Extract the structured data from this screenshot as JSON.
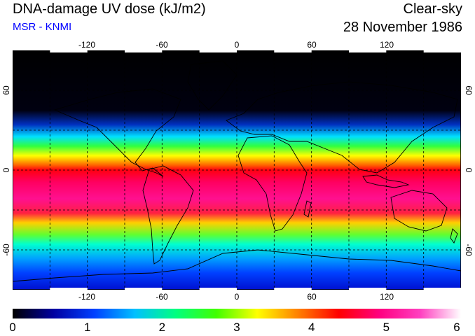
{
  "header": {
    "title": "DNA-damage UV dose (kJ/m2)",
    "subtitle": "MSR - KNMI",
    "scenario": "Clear-sky",
    "date": "28 November 1986"
  },
  "colors": {
    "subtitle": "#0000ff",
    "colorbar_stops": [
      "#000000",
      "#0000a0",
      "#0040ff",
      "#00c0ff",
      "#00ff80",
      "#40ff00",
      "#ffff00",
      "#ff8000",
      "#ff0000",
      "#ff0080",
      "#ff40c0",
      "#ffffff"
    ]
  },
  "map": {
    "lon_ticks": [
      "-120",
      "-60",
      "0",
      "60",
      "120"
    ],
    "lat_ticks": [
      "60",
      "0",
      "-60"
    ],
    "lat_ticks_right": [
      "60",
      "0",
      "-60"
    ],
    "lon_range": [
      -180,
      180
    ],
    "lat_range": [
      -90,
      90
    ],
    "grid": "dashed 30°"
  },
  "colorbar": {
    "labels": [
      "0",
      "1",
      "2",
      "3",
      "4",
      "5",
      "6"
    ],
    "range": [
      0,
      6
    ]
  }
}
